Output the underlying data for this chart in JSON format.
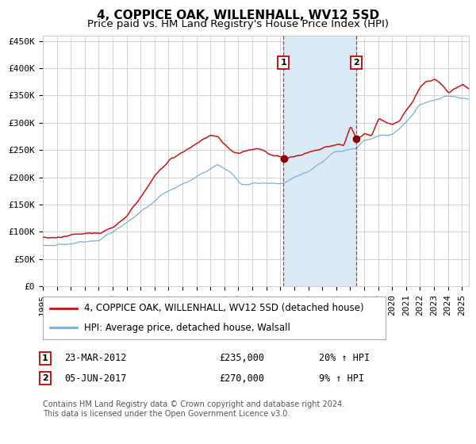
{
  "title": "4, COPPICE OAK, WILLENHALL, WV12 5SD",
  "subtitle": "Price paid vs. HM Land Registry's House Price Index (HPI)",
  "ylim": [
    0,
    460000
  ],
  "yticks": [
    0,
    50000,
    100000,
    150000,
    200000,
    250000,
    300000,
    350000,
    400000,
    450000
  ],
  "ytick_labels": [
    "£0",
    "£50K",
    "£100K",
    "£150K",
    "£200K",
    "£250K",
    "£300K",
    "£350K",
    "£400K",
    "£450K"
  ],
  "xlim_start": 1995.0,
  "xlim_end": 2025.5,
  "hpi_color": "#7aafd4",
  "property_color": "#cc1111",
  "marker_color": "#880000",
  "purchase1_year": 2012.22,
  "purchase1_price": 235000,
  "purchase2_year": 2017.42,
  "purchase2_price": 270000,
  "shade_color": "#daeaf7",
  "grid_color": "#cccccc",
  "background_color": "#ffffff",
  "legend_line1": "4, COPPICE OAK, WILLENHALL, WV12 5SD (detached house)",
  "legend_line2": "HPI: Average price, detached house, Walsall",
  "annotation1_label": "1",
  "annotation1_date": "23-MAR-2012",
  "annotation1_price": "£235,000",
  "annotation1_hpi": "20% ↑ HPI",
  "annotation2_label": "2",
  "annotation2_date": "05-JUN-2017",
  "annotation2_price": "£270,000",
  "annotation2_hpi": "9% ↑ HPI",
  "footer": "Contains HM Land Registry data © Crown copyright and database right 2024.\nThis data is licensed under the Open Government Licence v3.0.",
  "title_fontsize": 11,
  "subtitle_fontsize": 9.5,
  "tick_fontsize": 8,
  "legend_fontsize": 8.5,
  "annotation_fontsize": 8.5,
  "footer_fontsize": 7
}
